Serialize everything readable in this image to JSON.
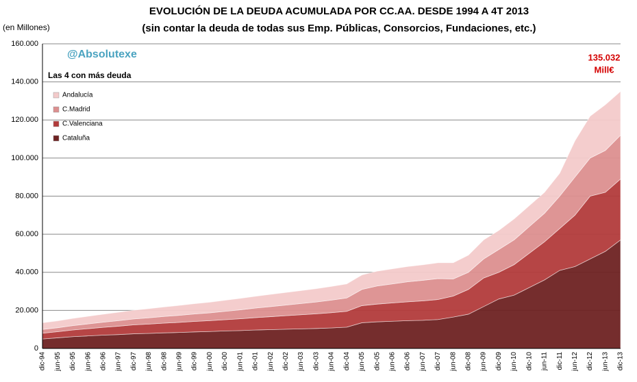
{
  "chart_data": {
    "type": "stacked_area",
    "title": "EVOLUCIÓN DE LA DEUDA ACUMULADA POR CC.AA. DESDE 1994 A 4T 2013",
    "subtitle": "(sin contar la deuda de todas sus Emp. Públicas, Consorcios, Fundaciones, etc.)",
    "y_label": "(en Millones)",
    "watermark": "@Absolutexe",
    "legend_title": "Las 4 con más deuda",
    "annotation": {
      "value": "135.032",
      "unit": "Mill€"
    },
    "categories": [
      "dic-94",
      "jun-95",
      "dic-95",
      "jun-96",
      "dic-96",
      "jun-97",
      "dic-97",
      "jun-98",
      "dic-98",
      "jun-99",
      "dic-99",
      "jun-00",
      "dic-00",
      "jun-01",
      "dic-01",
      "jun-02",
      "dic-02",
      "jun-03",
      "dic-03",
      "jun-04",
      "dic-04",
      "jun-05",
      "dic-05",
      "jun-06",
      "dic-06",
      "jun-07",
      "dic-07",
      "jun-08",
      "dic-08",
      "jun-09",
      "dic-09",
      "jun-10",
      "dic-10",
      "jun-11",
      "dic-11",
      "jun-12",
      "dic-12",
      "jun-13",
      "dic-13"
    ],
    "series": [
      {
        "name": "Cataluña",
        "color": "#6e2222",
        "values": [
          5000,
          5600,
          6200,
          6600,
          7000,
          7300,
          7700,
          7900,
          8200,
          8400,
          8700,
          8900,
          9200,
          9400,
          9700,
          9900,
          10100,
          10300,
          10500,
          10800,
          11200,
          13500,
          14000,
          14300,
          14600,
          14800,
          15200,
          16500,
          18000,
          22000,
          26000,
          28000,
          32000,
          36000,
          41000,
          43000,
          47000,
          51000,
          57000
        ]
      },
      {
        "name": "C.Valenciana",
        "color": "#b23b3b",
        "values": [
          3000,
          3200,
          3500,
          3800,
          4100,
          4400,
          4700,
          4900,
          5100,
          5300,
          5500,
          5700,
          5900,
          6200,
          6500,
          6800,
          7100,
          7400,
          7700,
          8000,
          8300,
          9000,
          9300,
          9600,
          9900,
          10200,
          10500,
          11000,
          13000,
          15000,
          14000,
          16000,
          18000,
          20000,
          22000,
          27000,
          33000,
          31000,
          32000
        ]
      },
      {
        "name": "C.Madrid",
        "color": "#dc8f8f",
        "values": [
          2000,
          2100,
          2300,
          2500,
          2700,
          2900,
          3100,
          3300,
          3500,
          3700,
          3900,
          4100,
          4400,
          4700,
          5000,
          5300,
          5600,
          5900,
          6200,
          6600,
          7000,
          8500,
          9500,
          10000,
          10500,
          10800,
          11000,
          9000,
          9000,
          10000,
          12000,
          13000,
          14000,
          15000,
          17000,
          20000,
          20000,
          22000,
          23000
        ]
      },
      {
        "name": "Andalucía",
        "color": "#f3caca",
        "values": [
          3500,
          3600,
          3800,
          4000,
          4200,
          4400,
          4600,
          4800,
          5000,
          5200,
          5400,
          5600,
          5800,
          6000,
          6200,
          6400,
          6600,
          6800,
          7000,
          7200,
          7400,
          7600,
          7800,
          7900,
          8000,
          8100,
          8300,
          8500,
          9000,
          10000,
          10000,
          11000,
          11000,
          11000,
          12000,
          19000,
          22000,
          24000,
          23032
        ]
      }
    ],
    "ylim": [
      0,
      160000
    ],
    "yticks": [
      0,
      {
        "value": 20000,
        "label": "20.000"
      },
      {
        "value": 40000,
        "label": "40.000"
      },
      {
        "value": 60000,
        "label": "60.000"
      },
      {
        "value": 80000,
        "label": "80.000"
      },
      {
        "value": 100000,
        "label": "100.000"
      },
      {
        "value": 120000,
        "label": "120.000"
      },
      {
        "value": 140000,
        "label": "140.000"
      },
      {
        "value": 160000,
        "label": "160.000"
      }
    ],
    "grid": true
  }
}
